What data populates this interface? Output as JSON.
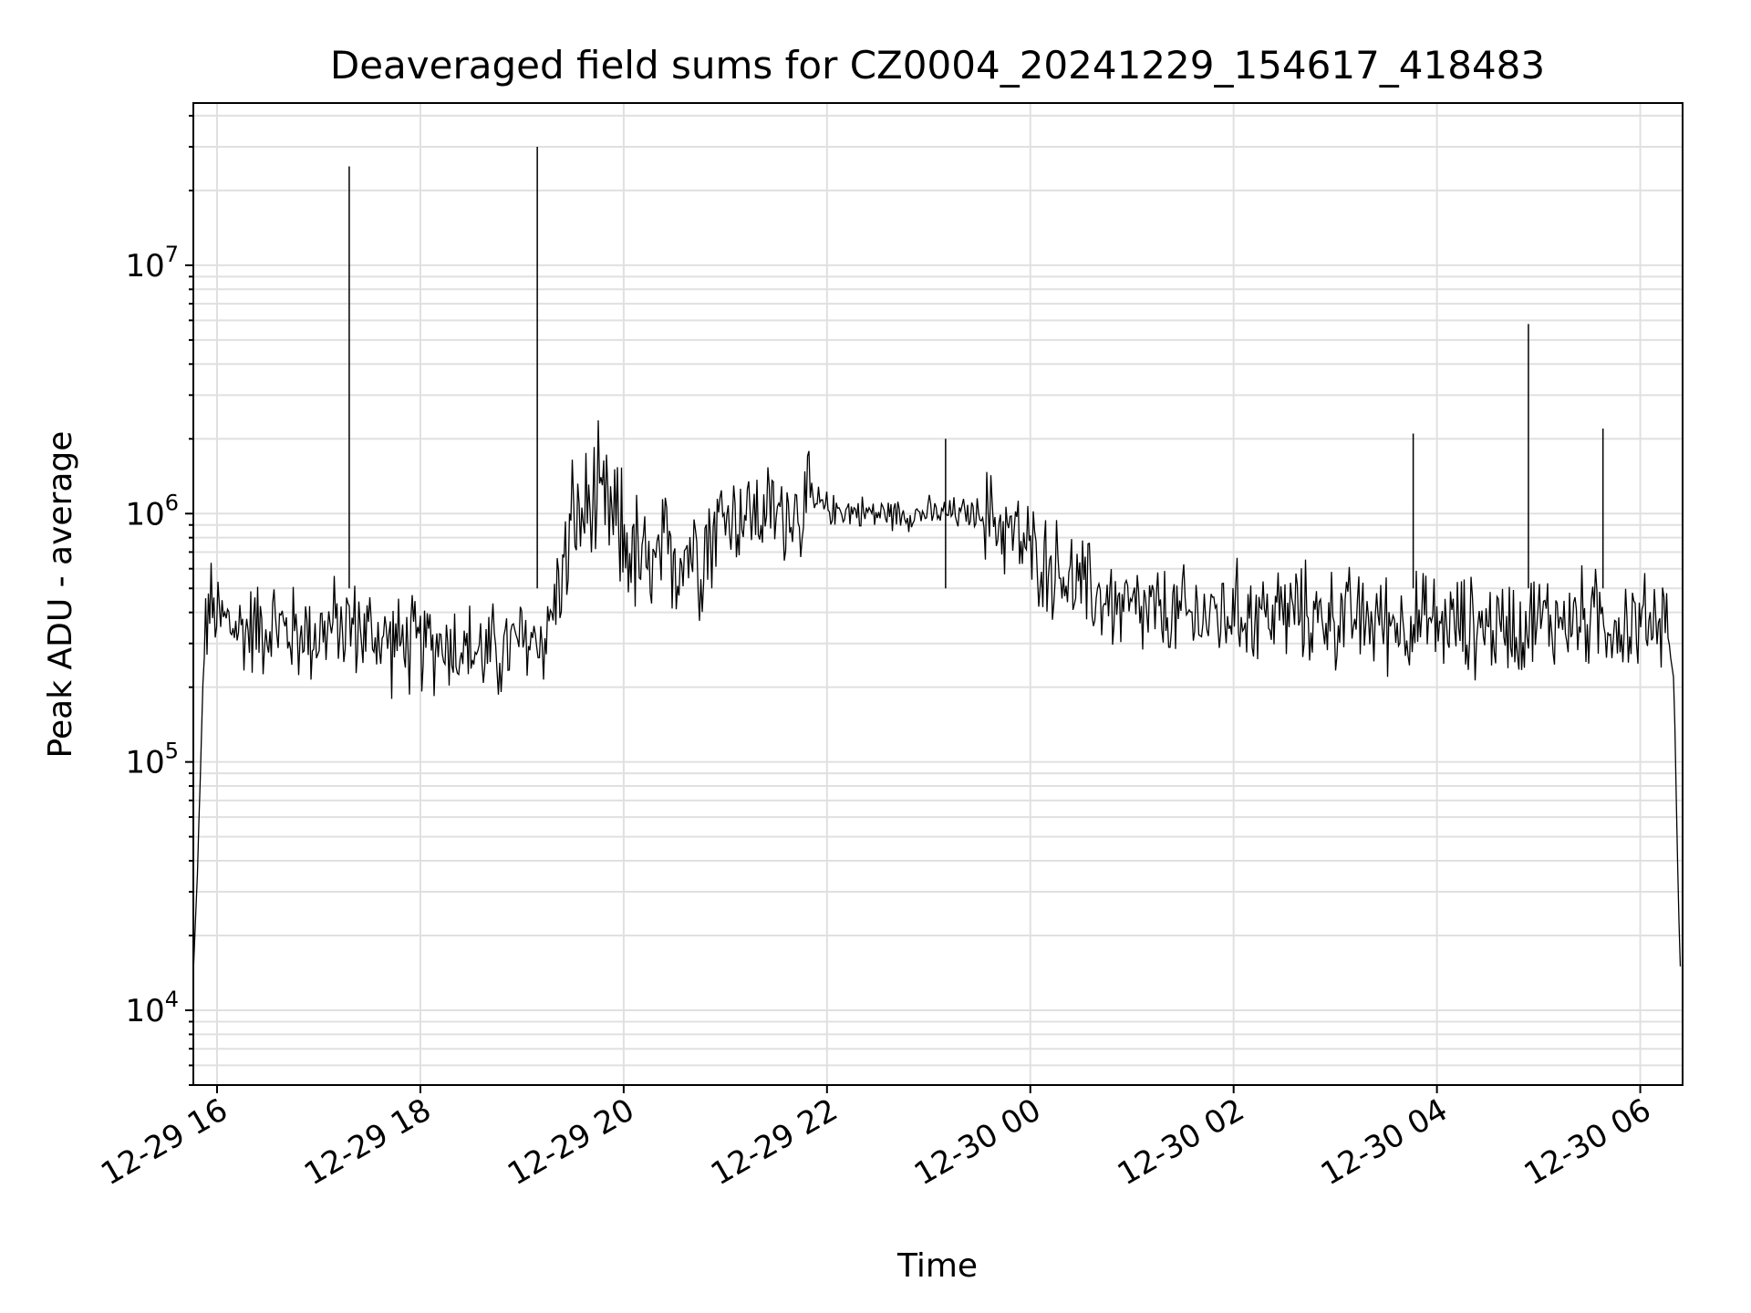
{
  "chart_data": {
    "type": "line",
    "title": "Deaveraged field sums for CZ0004_20241229_154617_418483",
    "xlabel": "Time",
    "ylabel": "Peak ADU - average",
    "y_scale": "log",
    "ylim": [
      5000,
      45000000
    ],
    "xlim": [
      "2024-12-29T15:46",
      "2024-12-30T06:25"
    ],
    "grid": true,
    "line_color": "#000000",
    "grid_color": "#e0e0e0",
    "x_ticks": [
      {
        "value": "2024-12-29T16:00",
        "label": "12-29 16"
      },
      {
        "value": "2024-12-29T18:00",
        "label": "12-29 18"
      },
      {
        "value": "2024-12-29T20:00",
        "label": "12-29 20"
      },
      {
        "value": "2024-12-29T22:00",
        "label": "12-29 22"
      },
      {
        "value": "2024-12-30T00:00",
        "label": "12-30 00"
      },
      {
        "value": "2024-12-30T02:00",
        "label": "12-30 02"
      },
      {
        "value": "2024-12-30T04:00",
        "label": "12-30 04"
      },
      {
        "value": "2024-12-30T06:00",
        "label": "12-30 06"
      }
    ],
    "y_ticks": [
      {
        "value": 10000,
        "base": "10",
        "exp": "4"
      },
      {
        "value": 100000,
        "base": "10",
        "exp": "5"
      },
      {
        "value": 1000000,
        "base": "10",
        "exp": "6"
      },
      {
        "value": 10000000,
        "base": "10",
        "exp": "7"
      }
    ],
    "series": [
      {
        "x": [
          "2024-12-29T15:46",
          "2024-12-29T15:48",
          "2024-12-29T15:50",
          "2024-12-29T15:52",
          "2024-12-29T15:55",
          "2024-12-29T16:00",
          "2024-12-29T16:15",
          "2024-12-29T16:30",
          "2024-12-29T16:45",
          "2024-12-29T17:00",
          "2024-12-29T17:15",
          "2024-12-29T17:30",
          "2024-12-29T17:45",
          "2024-12-29T18:00",
          "2024-12-29T18:15",
          "2024-12-29T18:30",
          "2024-12-29T18:45",
          "2024-12-29T19:00",
          "2024-12-29T19:15",
          "2024-12-29T19:30",
          "2024-12-29T19:45",
          "2024-12-29T20:00",
          "2024-12-29T20:15",
          "2024-12-29T20:30",
          "2024-12-29T20:45",
          "2024-12-29T21:00",
          "2024-12-29T21:15",
          "2024-12-29T21:30",
          "2024-12-29T21:45",
          "2024-12-29T22:00",
          "2024-12-29T22:30",
          "2024-12-29T23:00",
          "2024-12-29T23:30",
          "2024-12-29T23:45",
          "2024-12-30T00:00",
          "2024-12-30T00:15",
          "2024-12-30T00:30",
          "2024-12-30T00:45",
          "2024-12-30T01:00",
          "2024-12-30T01:30",
          "2024-12-30T02:00",
          "2024-12-30T02:30",
          "2024-12-30T03:00",
          "2024-12-30T03:30",
          "2024-12-30T04:00",
          "2024-12-30T04:30",
          "2024-12-30T05:00",
          "2024-12-30T05:30",
          "2024-12-30T06:00",
          "2024-12-30T06:15",
          "2024-12-30T06:20",
          "2024-12-30T06:22",
          "2024-12-30T06:24"
        ],
        "y": [
          14000,
          30000,
          80000,
          250000,
          420000,
          380000,
          340000,
          360000,
          330000,
          330000,
          360000,
          330000,
          300000,
          290000,
          310000,
          280000,
          270000,
          300000,
          330000,
          900000,
          1100000,
          800000,
          550000,
          700000,
          750000,
          1000000,
          1000000,
          1000000,
          1050000,
          1050000,
          1000000,
          1000000,
          1000000,
          900000,
          700000,
          600000,
          500000,
          450000,
          400000,
          380000,
          400000,
          400000,
          380000,
          370000,
          360000,
          350000,
          370000,
          380000,
          350000,
          400000,
          200000,
          40000,
          12000
        ]
      }
    ],
    "spikes": [
      {
        "x": "2024-12-29T17:18",
        "y": 25000000
      },
      {
        "x": "2024-12-29T19:09",
        "y": 30000000
      },
      {
        "x": "2024-12-29T23:10",
        "y": 2000000
      },
      {
        "x": "2024-12-30T03:46",
        "y": 2100000
      },
      {
        "x": "2024-12-30T04:54",
        "y": 5800000
      },
      {
        "x": "2024-12-30T05:38",
        "y": 2200000
      }
    ]
  }
}
